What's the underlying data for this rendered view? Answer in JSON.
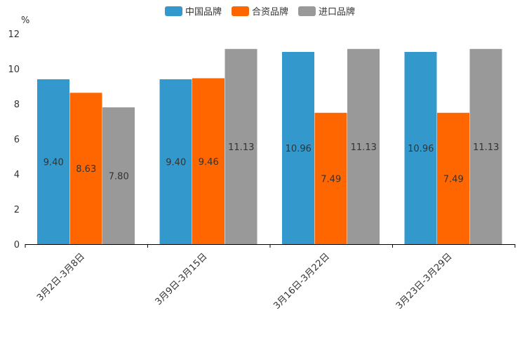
{
  "chart_data": {
    "type": "bar",
    "title": "",
    "xlabel": "",
    "ylabel": "%",
    "ylim": [
      0,
      12
    ],
    "yticks": [
      0,
      2,
      4,
      6,
      8,
      10,
      12
    ],
    "categories": [
      "3月2日-3月8日",
      "3月9日-3月15日",
      "3月16日-3月22日",
      "3月23日-3月29日"
    ],
    "series": [
      {
        "name": "中国品牌",
        "color": "#3399cc",
        "values": [
          9.4,
          9.4,
          10.96,
          10.96
        ],
        "labels": [
          "9.40",
          "9.40",
          "10.96",
          "10.96"
        ]
      },
      {
        "name": "合资品牌",
        "color": "#ff6600",
        "values": [
          8.63,
          9.46,
          7.49,
          7.49
        ],
        "labels": [
          "8.63",
          "9.46",
          "7.49",
          "7.49"
        ]
      },
      {
        "name": "进口品牌",
        "color": "#999999",
        "values": [
          7.8,
          11.13,
          11.13,
          11.13
        ],
        "labels": [
          "7.80",
          "11.13",
          "11.13",
          "11.13"
        ]
      }
    ],
    "legend_position": "top-center",
    "grid": false
  }
}
